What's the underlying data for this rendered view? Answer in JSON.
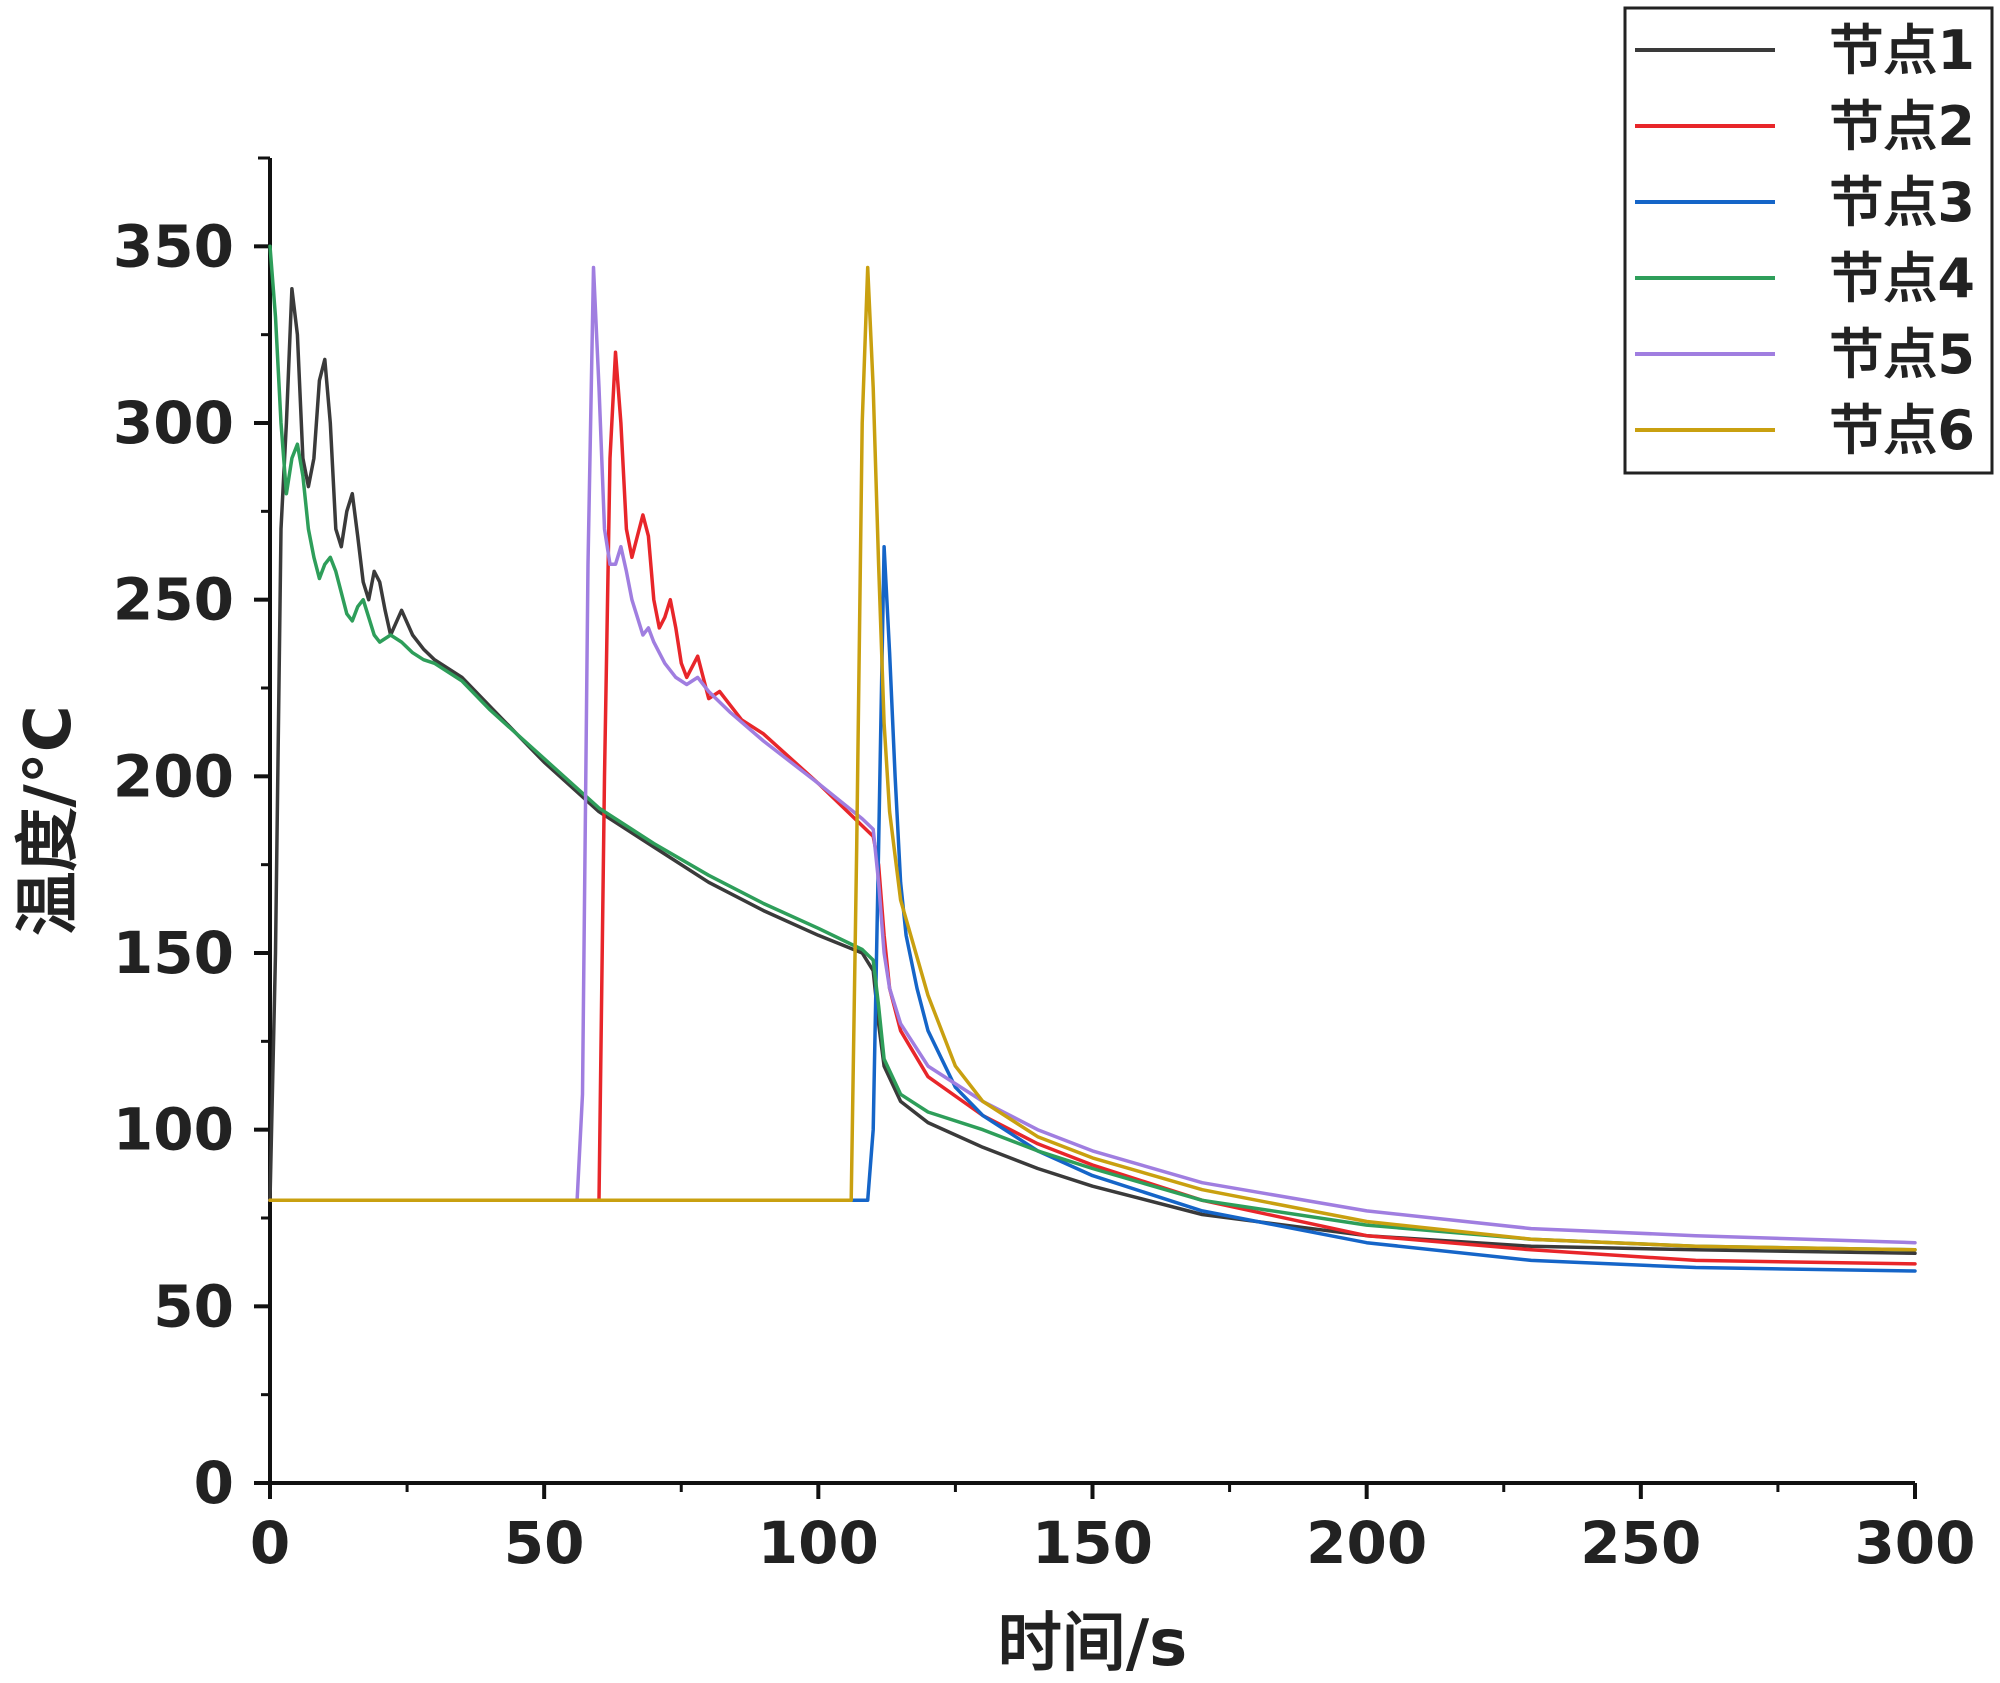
{
  "chart_data": {
    "type": "line",
    "title": "",
    "xlabel": "时间/s",
    "ylabel": "温度/°C",
    "xlim": [
      0,
      300
    ],
    "ylim": [
      0,
      375
    ],
    "xticks": [
      0,
      50,
      100,
      150,
      200,
      250,
      300
    ],
    "yticks": [
      0,
      50,
      100,
      150,
      200,
      250,
      300,
      350
    ],
    "legend_position": "top-right",
    "series": [
      {
        "name": "节点1",
        "color": "#3a3a3a",
        "points": [
          [
            0,
            80
          ],
          [
            1,
            150
          ],
          [
            2,
            270
          ],
          [
            3,
            300
          ],
          [
            4,
            338
          ],
          [
            5,
            325
          ],
          [
            6,
            290
          ],
          [
            7,
            282
          ],
          [
            8,
            290
          ],
          [
            9,
            312
          ],
          [
            10,
            318
          ],
          [
            11,
            300
          ],
          [
            12,
            270
          ],
          [
            13,
            265
          ],
          [
            14,
            275
          ],
          [
            15,
            280
          ],
          [
            16,
            268
          ],
          [
            17,
            255
          ],
          [
            18,
            250
          ],
          [
            19,
            258
          ],
          [
            20,
            255
          ],
          [
            21,
            247
          ],
          [
            22,
            240
          ],
          [
            24,
            247
          ],
          [
            26,
            240
          ],
          [
            28,
            236
          ],
          [
            30,
            233
          ],
          [
            35,
            228
          ],
          [
            40,
            220
          ],
          [
            50,
            204
          ],
          [
            60,
            190
          ],
          [
            70,
            180
          ],
          [
            80,
            170
          ],
          [
            90,
            162
          ],
          [
            100,
            155
          ],
          [
            108,
            150
          ],
          [
            110,
            145
          ],
          [
            111,
            130
          ],
          [
            112,
            118
          ],
          [
            115,
            108
          ],
          [
            120,
            102
          ],
          [
            130,
            95
          ],
          [
            140,
            89
          ],
          [
            150,
            84
          ],
          [
            170,
            76
          ],
          [
            200,
            70
          ],
          [
            230,
            67
          ],
          [
            260,
            66
          ],
          [
            300,
            65
          ]
        ]
      },
      {
        "name": "节点2",
        "color": "#e8262a",
        "points": [
          [
            0,
            80
          ],
          [
            58,
            80
          ],
          [
            60,
            80
          ],
          [
            61,
            200
          ],
          [
            62,
            290
          ],
          [
            63,
            320
          ],
          [
            64,
            300
          ],
          [
            65,
            270
          ],
          [
            66,
            262
          ],
          [
            67,
            268
          ],
          [
            68,
            274
          ],
          [
            69,
            268
          ],
          [
            70,
            250
          ],
          [
            71,
            242
          ],
          [
            72,
            245
          ],
          [
            73,
            250
          ],
          [
            74,
            242
          ],
          [
            75,
            232
          ],
          [
            76,
            228
          ],
          [
            77,
            231
          ],
          [
            78,
            234
          ],
          [
            79,
            228
          ],
          [
            80,
            222
          ],
          [
            82,
            224
          ],
          [
            84,
            220
          ],
          [
            86,
            216
          ],
          [
            90,
            212
          ],
          [
            100,
            198
          ],
          [
            110,
            183
          ],
          [
            111,
            175
          ],
          [
            112,
            155
          ],
          [
            113,
            140
          ],
          [
            115,
            128
          ],
          [
            120,
            115
          ],
          [
            130,
            104
          ],
          [
            140,
            96
          ],
          [
            150,
            90
          ],
          [
            170,
            80
          ],
          [
            200,
            70
          ],
          [
            230,
            66
          ],
          [
            260,
            63
          ],
          [
            300,
            62
          ]
        ]
      },
      {
        "name": "节点3",
        "color": "#1565c8",
        "points": [
          [
            0,
            80
          ],
          [
            108,
            80
          ],
          [
            109,
            80
          ],
          [
            110,
            100
          ],
          [
            111,
            180
          ],
          [
            112,
            265
          ],
          [
            113,
            235
          ],
          [
            114,
            200
          ],
          [
            115,
            170
          ],
          [
            116,
            155
          ],
          [
            118,
            140
          ],
          [
            120,
            128
          ],
          [
            125,
            112
          ],
          [
            130,
            104
          ],
          [
            140,
            94
          ],
          [
            150,
            87
          ],
          [
            170,
            77
          ],
          [
            200,
            68
          ],
          [
            230,
            63
          ],
          [
            260,
            61
          ],
          [
            300,
            60
          ]
        ]
      },
      {
        "name": "节点4",
        "color": "#2e9e5a",
        "points": [
          [
            0,
            350
          ],
          [
            1,
            330
          ],
          [
            2,
            300
          ],
          [
            3,
            280
          ],
          [
            4,
            290
          ],
          [
            5,
            294
          ],
          [
            6,
            285
          ],
          [
            7,
            270
          ],
          [
            8,
            262
          ],
          [
            9,
            256
          ],
          [
            10,
            260
          ],
          [
            11,
            262
          ],
          [
            12,
            258
          ],
          [
            13,
            252
          ],
          [
            14,
            246
          ],
          [
            15,
            244
          ],
          [
            16,
            248
          ],
          [
            17,
            250
          ],
          [
            18,
            245
          ],
          [
            19,
            240
          ],
          [
            20,
            238
          ],
          [
            22,
            240
          ],
          [
            24,
            238
          ],
          [
            26,
            235
          ],
          [
            28,
            233
          ],
          [
            30,
            232
          ],
          [
            35,
            227
          ],
          [
            40,
            219
          ],
          [
            50,
            205
          ],
          [
            60,
            191
          ],
          [
            70,
            181
          ],
          [
            80,
            172
          ],
          [
            90,
            164
          ],
          [
            100,
            157
          ],
          [
            108,
            151
          ],
          [
            110,
            148
          ],
          [
            111,
            135
          ],
          [
            112,
            120
          ],
          [
            115,
            110
          ],
          [
            120,
            105
          ],
          [
            130,
            100
          ],
          [
            140,
            94
          ],
          [
            150,
            89
          ],
          [
            170,
            80
          ],
          [
            200,
            73
          ],
          [
            230,
            69
          ],
          [
            260,
            67
          ],
          [
            300,
            66
          ]
        ]
      },
      {
        "name": "节点5",
        "color": "#a07ee0",
        "points": [
          [
            0,
            80
          ],
          [
            56,
            80
          ],
          [
            57,
            110
          ],
          [
            58,
            260
          ],
          [
            59,
            344
          ],
          [
            60,
            310
          ],
          [
            61,
            270
          ],
          [
            62,
            260
          ],
          [
            63,
            260
          ],
          [
            64,
            265
          ],
          [
            65,
            258
          ],
          [
            66,
            250
          ],
          [
            67,
            245
          ],
          [
            68,
            240
          ],
          [
            69,
            242
          ],
          [
            70,
            238
          ],
          [
            72,
            232
          ],
          [
            74,
            228
          ],
          [
            76,
            226
          ],
          [
            78,
            228
          ],
          [
            80,
            224
          ],
          [
            84,
            218
          ],
          [
            90,
            210
          ],
          [
            100,
            198
          ],
          [
            108,
            188
          ],
          [
            110,
            185
          ],
          [
            111,
            170
          ],
          [
            112,
            150
          ],
          [
            113,
            140
          ],
          [
            115,
            130
          ],
          [
            120,
            118
          ],
          [
            130,
            108
          ],
          [
            140,
            100
          ],
          [
            150,
            94
          ],
          [
            170,
            85
          ],
          [
            200,
            77
          ],
          [
            230,
            72
          ],
          [
            260,
            70
          ],
          [
            300,
            68
          ]
        ]
      },
      {
        "name": "节点6",
        "color": "#c9a010",
        "points": [
          [
            0,
            80
          ],
          [
            105,
            80
          ],
          [
            106,
            80
          ],
          [
            107,
            180
          ],
          [
            108,
            300
          ],
          [
            109,
            344
          ],
          [
            110,
            310
          ],
          [
            111,
            260
          ],
          [
            112,
            215
          ],
          [
            113,
            190
          ],
          [
            115,
            165
          ],
          [
            120,
            138
          ],
          [
            125,
            118
          ],
          [
            130,
            108
          ],
          [
            140,
            98
          ],
          [
            150,
            92
          ],
          [
            170,
            83
          ],
          [
            200,
            74
          ],
          [
            230,
            69
          ],
          [
            260,
            67
          ],
          [
            300,
            66
          ]
        ]
      }
    ]
  }
}
